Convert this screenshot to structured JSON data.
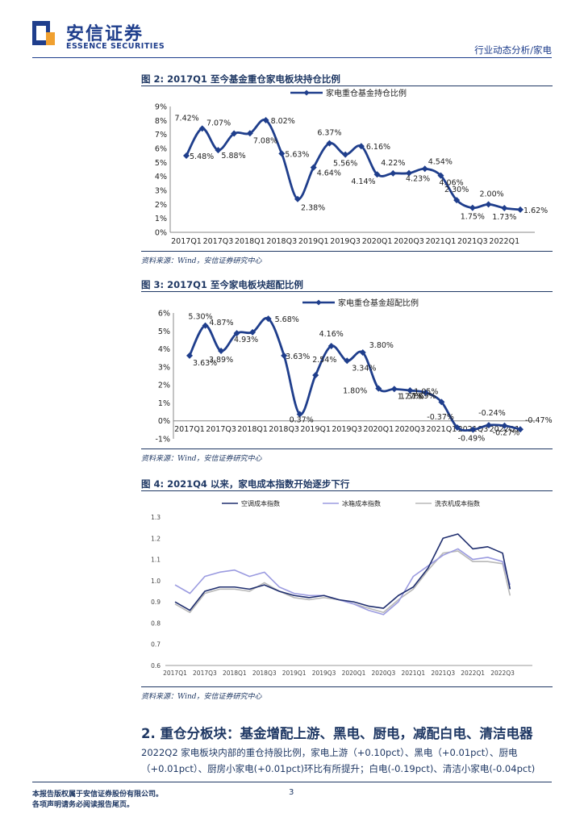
{
  "header": {
    "brand_cn": "安信证券",
    "brand_en": "ESSENCE SECURITIES",
    "section": "行业动态分析/家电"
  },
  "figures": {
    "fig2": {
      "title": "图 2:  2017Q1 至今基金重仓家电板块持仓比例",
      "source": "资料来源：Wind，安信证券研究中心"
    },
    "fig3": {
      "title": "图 3:  2017Q1 至今家电板块超配比例",
      "source": "资料来源：Wind，安信证券研究中心"
    },
    "fig4": {
      "title": "图 4:  2021Q4 以来，家电成本指数开始逐步下行",
      "source": "资料来源：Wind，安信证券研究中心"
    }
  },
  "section": {
    "title": "2. 重仓分板块：基金增配上游、黑电、厨电，减配白电、清洁电器",
    "para_line1": "2022Q2 家电板块内部的重仓持股比例，家电上游（+0.10pct）、黑电（+0.01pct）、厨电",
    "para_line2": "（+0.01pct）、厨房小家电(+0.01pct)环比有所提升；白电(-0.19pct)、清洁小家电(-0.04pct)"
  },
  "footer": {
    "line1": "本报告版权属于安信证券股份有限公司。",
    "line2": "各项声明请务必阅读报告尾页。",
    "page": "3"
  },
  "colors": {
    "navy": "#1f3e8c",
    "series_dark": "#1f2e6e",
    "series_light": "#9b9be0",
    "series_gray": "#b8b8b8",
    "logo_orange": "#f0a030"
  },
  "chart_data": [
    {
      "id": "fig2",
      "type": "line",
      "legend": "家电重仓基金持仓比例",
      "unit": "%",
      "ylim": [
        0,
        9
      ],
      "yticks": [
        "0%",
        "1%",
        "2%",
        "3%",
        "4%",
        "5%",
        "6%",
        "7%",
        "8%",
        "9%"
      ],
      "xtick_labels": [
        "2017Q1",
        "2017Q3",
        "2018Q1",
        "2018Q3",
        "2019Q1",
        "2019Q3",
        "2020Q1",
        "2020Q3",
        "2021Q1",
        "2021Q3",
        "2022Q1"
      ],
      "categories": [
        "2017Q1",
        "2017Q2",
        "2017Q3",
        "2017Q4",
        "2018Q1",
        "2018Q2",
        "2018Q3",
        "2018Q4",
        "2019Q1",
        "2019Q2",
        "2019Q3",
        "2019Q4",
        "2020Q1",
        "2020Q2",
        "2020Q3",
        "2020Q4",
        "2021Q1",
        "2021Q2",
        "2021Q3",
        "2021Q4",
        "2022Q1",
        "2022Q2"
      ],
      "values": [
        5.48,
        7.42,
        5.88,
        7.07,
        7.08,
        8.02,
        5.63,
        2.38,
        4.64,
        6.37,
        5.56,
        6.16,
        4.14,
        4.22,
        4.23,
        4.54,
        4.06,
        2.3,
        1.75,
        2.0,
        1.73,
        1.62
      ],
      "data_labels": [
        "5.48%",
        "7.42%",
        "5.88%",
        "7.07%",
        "7.08%",
        "8.02%",
        "5.63%",
        "2.38%",
        "4.64%",
        "6.37%",
        "5.56%",
        "6.16%",
        "4.14%",
        "4.22%",
        "4.23%",
        "4.54%",
        "4.06%",
        "2.30%",
        "1.75%",
        "2.00%",
        "1.73%",
        "1.62%"
      ]
    },
    {
      "id": "fig3",
      "type": "line",
      "legend": "家电重仓基金超配比例",
      "unit": "%",
      "ylim": [
        -1,
        6
      ],
      "yticks": [
        "-1%",
        "0%",
        "1%",
        "2%",
        "3%",
        "4%",
        "5%",
        "6%"
      ],
      "xtick_labels": [
        "2017Q1",
        "2017Q3",
        "2018Q1",
        "2018Q3",
        "2019Q1",
        "2019Q3",
        "2020Q1",
        "2020Q3",
        "2021Q1",
        "2021Q3",
        "2022Q1"
      ],
      "categories": [
        "2017Q1",
        "2017Q2",
        "2017Q3",
        "2017Q4",
        "2018Q1",
        "2018Q2",
        "2018Q3",
        "2018Q4",
        "2019Q1",
        "2019Q2",
        "2019Q3",
        "2019Q4",
        "2020Q1",
        "2020Q2",
        "2020Q3",
        "2020Q4",
        "2021Q1",
        "2021Q2",
        "2021Q3",
        "2021Q4",
        "2022Q1",
        "2022Q2"
      ],
      "values": [
        3.63,
        5.3,
        3.89,
        4.87,
        4.93,
        5.68,
        3.63,
        0.37,
        2.54,
        4.16,
        3.34,
        3.8,
        1.8,
        1.77,
        1.69,
        1.57,
        1.05,
        -0.37,
        -0.49,
        -0.24,
        -0.27,
        -0.47
      ],
      "data_labels": [
        "3.63%",
        "5.30%",
        "3.89%",
        "4.87%",
        "4.93%",
        "5.68%",
        "3.63%",
        "0.37%",
        "2.54%",
        "4.16%",
        "3.34%",
        "3.80%",
        "1.80%",
        "1.77%",
        "1.69%",
        "1.57%",
        "1.05%",
        "-0.37%",
        "-0.49%",
        "-0.24%",
        "-0.27%",
        "-0.47%"
      ]
    },
    {
      "id": "fig4",
      "type": "line",
      "ylim": [
        0.6,
        1.3
      ],
      "yticks": [
        "0.6",
        "0.7",
        "0.8",
        "0.9",
        "1.0",
        "1.1",
        "1.2",
        "1.3"
      ],
      "xtick_labels": [
        "2017Q1",
        "2017Q3",
        "2018Q1",
        "2018Q3",
        "2019Q1",
        "2019Q3",
        "2020Q1",
        "2020Q3",
        "2021Q1",
        "2021Q3",
        "2022Q1",
        "2022Q3"
      ],
      "x": [
        0,
        0.5,
        1,
        1.5,
        2,
        2.5,
        3,
        3.5,
        4,
        4.5,
        5,
        5.5,
        6,
        6.5,
        7,
        7.5,
        8,
        8.5,
        9,
        9.5,
        10,
        10.5,
        11,
        11.25
      ],
      "series": [
        {
          "name": "空调成本指数",
          "color": "#1f2e6e",
          "values": [
            0.9,
            0.86,
            0.95,
            0.97,
            0.97,
            0.96,
            0.98,
            0.95,
            0.93,
            0.92,
            0.93,
            0.91,
            0.9,
            0.88,
            0.87,
            0.93,
            0.97,
            1.06,
            1.2,
            1.22,
            1.15,
            1.16,
            1.13,
            0.96
          ]
        },
        {
          "name": "冰箱成本指数",
          "color": "#9b9be0",
          "values": [
            0.98,
            0.94,
            1.02,
            1.04,
            1.05,
            1.02,
            1.04,
            0.97,
            0.94,
            0.93,
            0.93,
            0.91,
            0.89,
            0.86,
            0.84,
            0.9,
            1.02,
            1.07,
            1.12,
            1.15,
            1.1,
            1.11,
            1.09,
            0.98
          ]
        },
        {
          "name": "洗衣机成本指数",
          "color": "#b8b8b8",
          "values": [
            0.89,
            0.85,
            0.94,
            0.96,
            0.96,
            0.95,
            0.99,
            0.95,
            0.92,
            0.91,
            0.92,
            0.91,
            0.89,
            0.87,
            0.85,
            0.91,
            0.96,
            1.05,
            1.13,
            1.14,
            1.09,
            1.09,
            1.08,
            0.93
          ]
        }
      ]
    }
  ]
}
